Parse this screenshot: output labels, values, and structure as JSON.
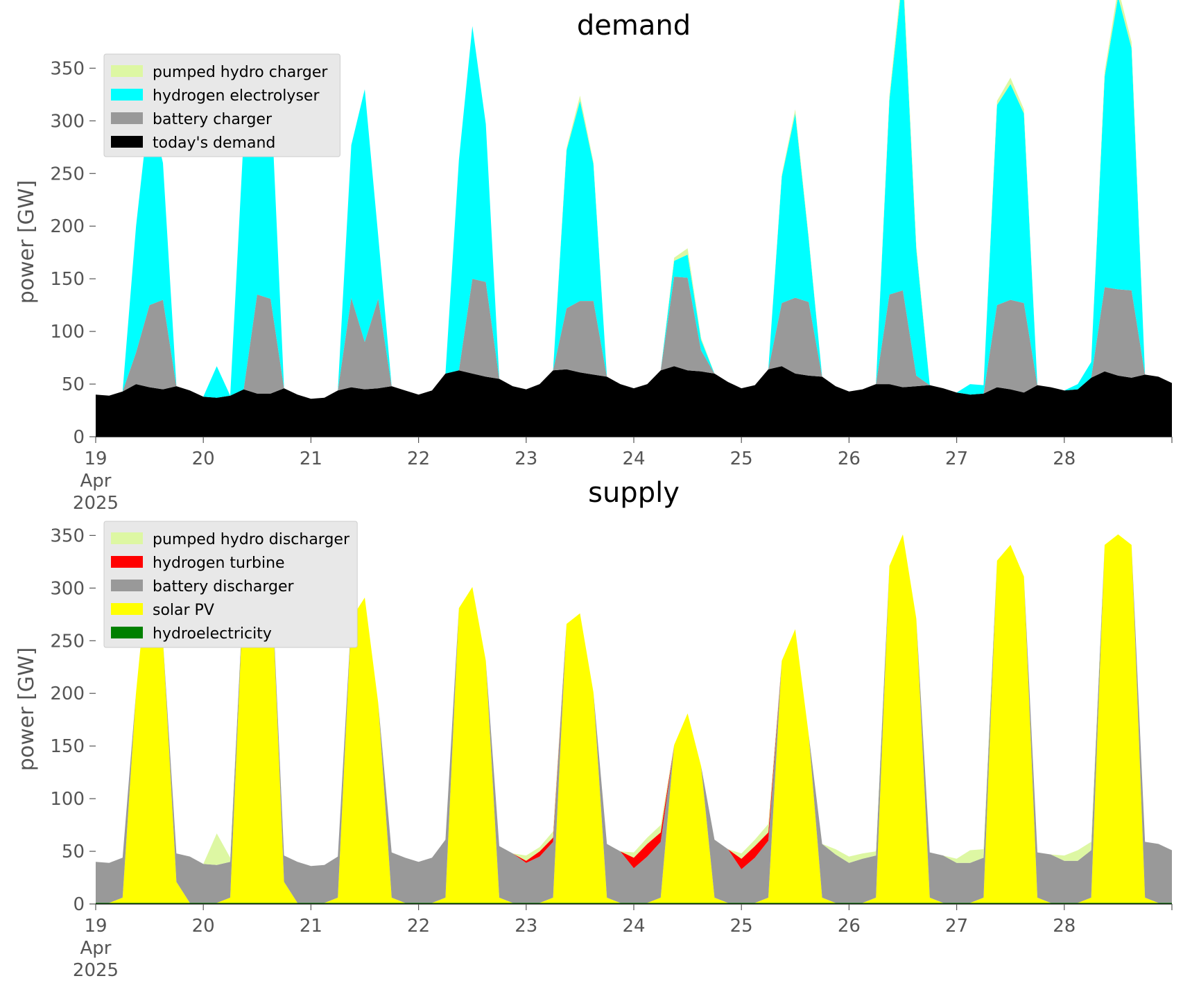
{
  "chart_data": [
    {
      "type": "area",
      "title": "demand",
      "ylabel": "power [GW]",
      "xlabel": "",
      "ylim": [
        0,
        370
      ],
      "xlim": [
        "2025-04-19 00:00",
        "2025-04-29 00:00"
      ],
      "yticks": [
        "0",
        "50",
        "100",
        "150",
        "200",
        "250",
        "300",
        "350"
      ],
      "ytick_values": [
        0,
        50,
        100,
        150,
        200,
        250,
        300,
        350
      ],
      "xticks": [
        {
          "line1": "19",
          "line2": "Apr",
          "line3": "2025"
        },
        {
          "line1": "20"
        },
        {
          "line1": "21"
        },
        {
          "line1": "22"
        },
        {
          "line1": "23"
        },
        {
          "line1": "24"
        },
        {
          "line1": "25"
        },
        {
          "line1": "26"
        },
        {
          "line1": "27"
        },
        {
          "line1": "28"
        }
      ],
      "x": [
        "2025-04-19 00:00",
        "2025-04-19 03:00",
        "2025-04-19 06:00",
        "2025-04-19 09:00",
        "2025-04-19 12:00",
        "2025-04-19 15:00",
        "2025-04-19 18:00",
        "2025-04-19 21:00",
        "2025-04-20 00:00",
        "2025-04-20 03:00",
        "2025-04-20 06:00",
        "2025-04-20 09:00",
        "2025-04-20 12:00",
        "2025-04-20 15:00",
        "2025-04-20 18:00",
        "2025-04-20 21:00",
        "2025-04-21 00:00",
        "2025-04-21 03:00",
        "2025-04-21 06:00",
        "2025-04-21 09:00",
        "2025-04-21 12:00",
        "2025-04-21 15:00",
        "2025-04-21 18:00",
        "2025-04-21 21:00",
        "2025-04-22 00:00",
        "2025-04-22 03:00",
        "2025-04-22 06:00",
        "2025-04-22 09:00",
        "2025-04-22 12:00",
        "2025-04-22 15:00",
        "2025-04-22 18:00",
        "2025-04-22 21:00",
        "2025-04-23 00:00",
        "2025-04-23 03:00",
        "2025-04-23 06:00",
        "2025-04-23 09:00",
        "2025-04-23 12:00",
        "2025-04-23 15:00",
        "2025-04-23 18:00",
        "2025-04-23 21:00",
        "2025-04-24 00:00",
        "2025-04-24 03:00",
        "2025-04-24 06:00",
        "2025-04-24 09:00",
        "2025-04-24 12:00",
        "2025-04-24 15:00",
        "2025-04-24 18:00",
        "2025-04-24 21:00",
        "2025-04-25 00:00",
        "2025-04-25 03:00",
        "2025-04-25 06:00",
        "2025-04-25 09:00",
        "2025-04-25 12:00",
        "2025-04-25 15:00",
        "2025-04-25 18:00",
        "2025-04-25 21:00",
        "2025-04-26 00:00",
        "2025-04-26 03:00",
        "2025-04-26 06:00",
        "2025-04-26 09:00",
        "2025-04-26 12:00",
        "2025-04-26 15:00",
        "2025-04-26 18:00",
        "2025-04-26 21:00",
        "2025-04-27 00:00",
        "2025-04-27 03:00",
        "2025-04-27 06:00",
        "2025-04-27 09:00",
        "2025-04-27 12:00",
        "2025-04-27 15:00",
        "2025-04-27 18:00",
        "2025-04-27 21:00",
        "2025-04-28 00:00",
        "2025-04-28 03:00",
        "2025-04-28 06:00",
        "2025-04-28 09:00",
        "2025-04-28 12:00",
        "2025-04-28 15:00",
        "2025-04-28 18:00",
        "2025-04-28 21:00",
        "2025-04-29 00:00"
      ],
      "legend_position": "upper-left",
      "grid": false,
      "series": [
        {
          "name": "today's demand",
          "color": "#000000",
          "values": [
            40,
            39,
            43,
            50,
            47,
            45,
            48,
            44,
            38,
            37,
            39,
            45,
            41,
            41,
            46,
            40,
            36,
            37,
            44,
            47,
            45,
            46,
            48,
            44,
            40,
            44,
            60,
            63,
            60,
            57,
            55,
            48,
            45,
            50,
            63,
            64,
            61,
            59,
            57,
            50,
            46,
            50,
            63,
            67,
            63,
            62,
            60,
            52,
            46,
            49,
            64,
            67,
            60,
            58,
            57,
            48,
            43,
            45,
            50,
            50,
            47,
            48,
            49,
            46,
            42,
            40,
            41,
            47,
            45,
            42,
            49,
            47,
            44,
            45,
            56,
            62,
            58,
            56,
            59,
            57,
            51
          ]
        },
        {
          "name": "battery charger",
          "color": "#999999",
          "values": [
            0,
            0,
            0,
            30,
            78,
            85,
            0,
            0,
            0,
            0,
            0,
            0,
            94,
            90,
            0,
            0,
            0,
            0,
            0,
            85,
            45,
            85,
            0,
            0,
            0,
            0,
            0,
            0,
            90,
            90,
            0,
            0,
            0,
            0,
            0,
            58,
            68,
            70,
            0,
            0,
            0,
            0,
            0,
            85,
            88,
            20,
            0,
            0,
            0,
            0,
            0,
            60,
            72,
            70,
            0,
            0,
            0,
            0,
            0,
            85,
            92,
            10,
            0,
            0,
            0,
            0,
            0,
            78,
            85,
            85,
            0,
            0,
            0,
            0,
            0,
            80,
            82,
            83,
            0,
            0,
            0
          ]
        },
        {
          "name": "hydrogen electrolyser",
          "color": "#00ffff",
          "values": [
            0,
            0,
            0,
            120,
            190,
            130,
            0,
            0,
            0,
            30,
            0,
            240,
            200,
            200,
            0,
            0,
            0,
            0,
            0,
            145,
            240,
            60,
            0,
            0,
            0,
            0,
            0,
            200,
            240,
            150,
            0,
            0,
            0,
            0,
            0,
            150,
            190,
            130,
            0,
            0,
            0,
            0,
            0,
            15,
            22,
            10,
            0,
            0,
            0,
            0,
            0,
            120,
            175,
            60,
            0,
            0,
            0,
            0,
            0,
            185,
            300,
            120,
            0,
            0,
            0,
            10,
            8,
            190,
            205,
            180,
            0,
            0,
            0,
            5,
            15,
            200,
            278,
            230,
            0,
            0,
            0
          ]
        },
        {
          "name": "pumped hydro charger",
          "color": "#ddf7a3",
          "values": [
            0,
            0,
            0,
            0,
            0,
            0,
            0,
            0,
            0,
            0,
            0,
            0,
            0,
            0,
            0,
            0,
            0,
            0,
            0,
            0,
            0,
            0,
            0,
            0,
            0,
            0,
            0,
            0,
            0,
            0,
            0,
            0,
            0,
            0,
            0,
            2,
            5,
            2,
            0,
            0,
            0,
            0,
            0,
            3,
            6,
            2,
            0,
            0,
            0,
            0,
            0,
            2,
            4,
            2,
            0,
            0,
            0,
            0,
            0,
            4,
            8,
            4,
            0,
            0,
            0,
            0,
            0,
            4,
            6,
            4,
            0,
            0,
            0,
            0,
            0,
            5,
            8,
            6,
            0,
            0,
            0
          ]
        }
      ]
    },
    {
      "type": "area",
      "title": "supply",
      "ylabel": "power [GW]",
      "xlabel": "",
      "ylim": [
        0,
        370
      ],
      "xlim": [
        "2025-04-19 00:00",
        "2025-04-29 00:00"
      ],
      "yticks": [
        "0",
        "50",
        "100",
        "150",
        "200",
        "250",
        "300",
        "350"
      ],
      "ytick_values": [
        0,
        50,
        100,
        150,
        200,
        250,
        300,
        350
      ],
      "xticks": [
        {
          "line1": "19",
          "line2": "Apr",
          "line3": "2025"
        },
        {
          "line1": "20"
        },
        {
          "line1": "21"
        },
        {
          "line1": "22"
        },
        {
          "line1": "23"
        },
        {
          "line1": "24"
        },
        {
          "line1": "25"
        },
        {
          "line1": "26"
        },
        {
          "line1": "27"
        },
        {
          "line1": "28"
        }
      ],
      "x": [
        "2025-04-19 00:00",
        "2025-04-19 03:00",
        "2025-04-19 06:00",
        "2025-04-19 09:00",
        "2025-04-19 12:00",
        "2025-04-19 15:00",
        "2025-04-19 18:00",
        "2025-04-19 21:00",
        "2025-04-20 00:00",
        "2025-04-20 03:00",
        "2025-04-20 06:00",
        "2025-04-20 09:00",
        "2025-04-20 12:00",
        "2025-04-20 15:00",
        "2025-04-20 18:00",
        "2025-04-20 21:00",
        "2025-04-21 00:00",
        "2025-04-21 03:00",
        "2025-04-21 06:00",
        "2025-04-21 09:00",
        "2025-04-21 12:00",
        "2025-04-21 15:00",
        "2025-04-21 18:00",
        "2025-04-21 21:00",
        "2025-04-22 00:00",
        "2025-04-22 03:00",
        "2025-04-22 06:00",
        "2025-04-22 09:00",
        "2025-04-22 12:00",
        "2025-04-22 15:00",
        "2025-04-22 18:00",
        "2025-04-22 21:00",
        "2025-04-23 00:00",
        "2025-04-23 03:00",
        "2025-04-23 06:00",
        "2025-04-23 09:00",
        "2025-04-23 12:00",
        "2025-04-23 15:00",
        "2025-04-23 18:00",
        "2025-04-23 21:00",
        "2025-04-24 00:00",
        "2025-04-24 03:00",
        "2025-04-24 06:00",
        "2025-04-24 09:00",
        "2025-04-24 12:00",
        "2025-04-24 15:00",
        "2025-04-24 18:00",
        "2025-04-24 21:00",
        "2025-04-25 00:00",
        "2025-04-25 03:00",
        "2025-04-25 06:00",
        "2025-04-25 09:00",
        "2025-04-25 12:00",
        "2025-04-25 15:00",
        "2025-04-25 18:00",
        "2025-04-25 21:00",
        "2025-04-26 00:00",
        "2025-04-26 03:00",
        "2025-04-26 06:00",
        "2025-04-26 09:00",
        "2025-04-26 12:00",
        "2025-04-26 15:00",
        "2025-04-26 18:00",
        "2025-04-26 21:00",
        "2025-04-27 00:00",
        "2025-04-27 03:00",
        "2025-04-27 06:00",
        "2025-04-27 09:00",
        "2025-04-27 12:00",
        "2025-04-27 15:00",
        "2025-04-27 18:00",
        "2025-04-27 21:00",
        "2025-04-28 00:00",
        "2025-04-28 03:00",
        "2025-04-28 06:00",
        "2025-04-28 09:00",
        "2025-04-28 12:00",
        "2025-04-28 15:00",
        "2025-04-28 18:00",
        "2025-04-28 21:00",
        "2025-04-29 00:00"
      ],
      "legend_position": "upper-left",
      "grid": false,
      "series": [
        {
          "name": "hydroelectricity",
          "color": "#008000",
          "values": [
            1,
            1,
            1,
            1,
            1,
            1,
            1,
            1,
            1,
            1,
            1,
            1,
            1,
            1,
            1,
            1,
            1,
            1,
            1,
            1,
            1,
            1,
            1,
            1,
            1,
            1,
            1,
            1,
            1,
            1,
            1,
            1,
            1,
            1,
            1,
            1,
            1,
            1,
            1,
            1,
            1,
            1,
            1,
            1,
            1,
            1,
            1,
            1,
            1,
            1,
            1,
            1,
            1,
            1,
            1,
            1,
            1,
            1,
            1,
            1,
            1,
            1,
            1,
            1,
            1,
            1,
            1,
            1,
            1,
            1,
            1,
            1,
            1,
            1,
            1,
            1,
            1,
            1,
            1,
            1,
            1
          ]
        },
        {
          "name": "solar PV",
          "color": "#ffff00",
          "values": [
            0,
            0,
            5,
            200,
            330,
            250,
            20,
            0,
            0,
            0,
            5,
            300,
            345,
            330,
            20,
            0,
            0,
            0,
            5,
            270,
            290,
            190,
            5,
            0,
            0,
            0,
            5,
            280,
            300,
            230,
            5,
            0,
            0,
            0,
            5,
            265,
            275,
            200,
            5,
            0,
            0,
            0,
            5,
            150,
            180,
            130,
            5,
            0,
            0,
            0,
            5,
            230,
            260,
            160,
            5,
            0,
            0,
            0,
            5,
            320,
            350,
            270,
            5,
            0,
            0,
            0,
            5,
            325,
            340,
            310,
            5,
            0,
            0,
            0,
            5,
            340,
            350,
            340,
            5,
            0,
            0
          ]
        },
        {
          "name": "battery discharger",
          "color": "#999999",
          "values": [
            39,
            38,
            38,
            0,
            0,
            0,
            27,
            44,
            37,
            36,
            34,
            0,
            0,
            0,
            25,
            39,
            35,
            36,
            39,
            0,
            0,
            0,
            43,
            43,
            39,
            43,
            55,
            0,
            0,
            0,
            49,
            47,
            38,
            44,
            53,
            0,
            0,
            0,
            51,
            49,
            33,
            44,
            53,
            0,
            0,
            0,
            55,
            51,
            32,
            43,
            54,
            0,
            0,
            0,
            51,
            46,
            38,
            42,
            40,
            0,
            0,
            0,
            43,
            45,
            38,
            38,
            38,
            0,
            0,
            0,
            43,
            46,
            40,
            40,
            45,
            0,
            0,
            0,
            53,
            56,
            50
          ]
        },
        {
          "name": "hydrogen turbine",
          "color": "#ff0000",
          "values": [
            0,
            0,
            0,
            0,
            0,
            0,
            0,
            0,
            0,
            0,
            0,
            0,
            0,
            0,
            0,
            0,
            0,
            0,
            0,
            0,
            0,
            0,
            0,
            0,
            0,
            0,
            0,
            0,
            0,
            0,
            0,
            0,
            2,
            5,
            4,
            0,
            0,
            0,
            0,
            0,
            10,
            12,
            9,
            0,
            0,
            0,
            0,
            0,
            10,
            11,
            8,
            0,
            0,
            0,
            0,
            0,
            0,
            0,
            0,
            0,
            0,
            0,
            0,
            0,
            0,
            0,
            0,
            0,
            0,
            0,
            0,
            0,
            0,
            0,
            0,
            0,
            0,
            0,
            0,
            0,
            0
          ]
        },
        {
          "name": "pumped hydro discharger",
          "color": "#ddf7a3",
          "values": [
            0,
            0,
            0,
            0,
            0,
            0,
            0,
            0,
            0,
            30,
            4,
            0,
            0,
            0,
            0,
            0,
            0,
            0,
            0,
            0,
            0,
            0,
            0,
            0,
            0,
            0,
            0,
            0,
            0,
            0,
            0,
            0,
            5,
            4,
            6,
            0,
            0,
            0,
            0,
            0,
            5,
            6,
            7,
            0,
            0,
            0,
            0,
            0,
            5,
            6,
            8,
            0,
            0,
            0,
            0,
            5,
            6,
            5,
            4,
            0,
            0,
            0,
            0,
            0,
            4,
            12,
            8,
            0,
            0,
            0,
            0,
            0,
            5,
            10,
            8,
            0,
            0,
            0,
            0,
            0,
            0
          ]
        }
      ]
    }
  ]
}
